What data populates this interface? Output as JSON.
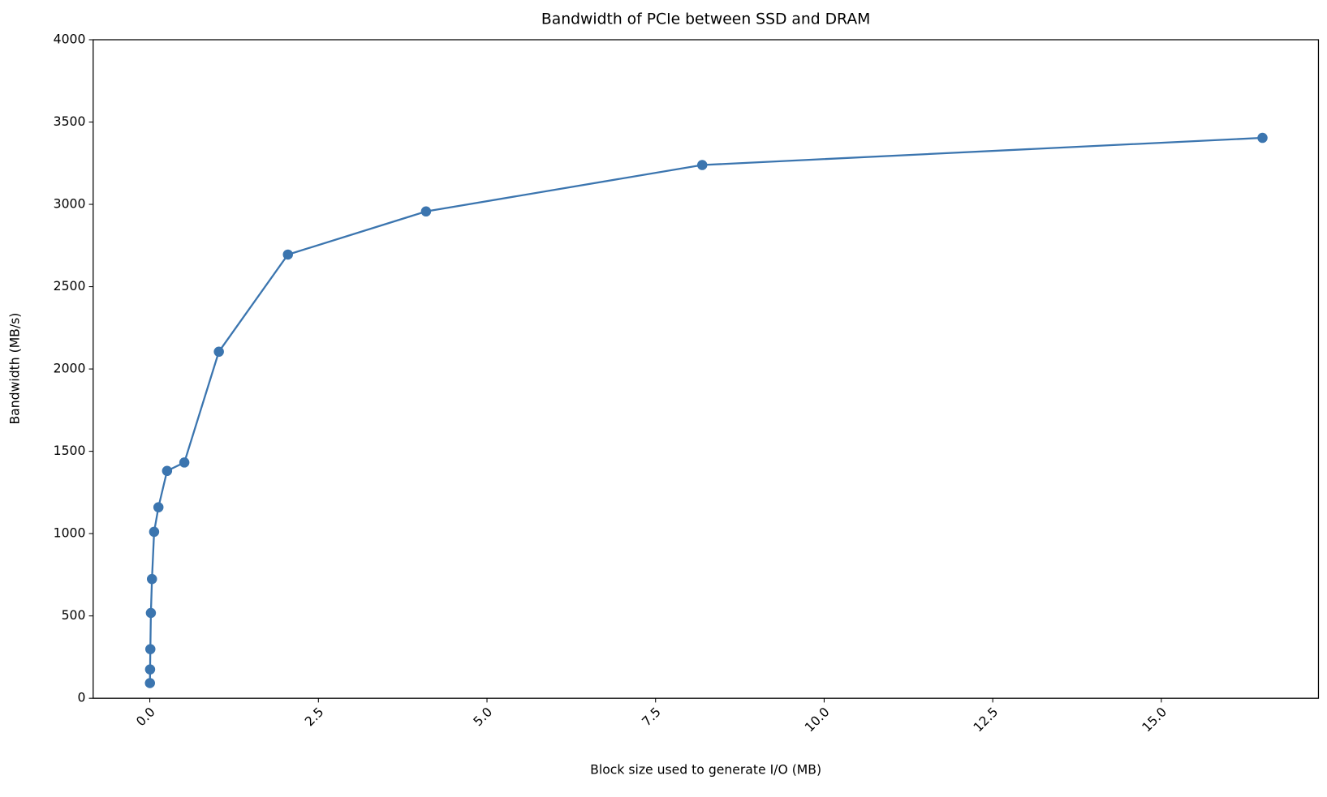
{
  "chart_data": {
    "type": "line",
    "title": "Bandwidth of PCIe between SSD and DRAM",
    "xlabel": "Block size used to generate I/O (MB)",
    "ylabel": "Bandwidth (MB/s)",
    "x": [
      0.002,
      0.004,
      0.008,
      0.016,
      0.032,
      0.064,
      0.128,
      0.256,
      0.512,
      1.024,
      2.048,
      4.096,
      8.192,
      16.5
    ],
    "series": [
      {
        "color": "#3b75af",
        "values": [
          92,
          175,
          298,
          518,
          724,
          1011,
          1160,
          1381,
          1432,
          2105,
          2695,
          2957,
          3239,
          3404
        ]
      }
    ],
    "xlim": [
      -0.84,
      17.33
    ],
    "ylim": [
      0,
      4000
    ],
    "xticks": [
      {
        "value": 0,
        "label": "0.0"
      },
      2.5,
      {
        "value": 5,
        "label": "5.0"
      },
      7.5,
      {
        "value": 10,
        "label": "10.0"
      },
      12.5,
      {
        "value": 15,
        "label": "15.0"
      }
    ],
    "yticks": [
      0,
      500,
      1000,
      1500,
      2000,
      2500,
      3000,
      3500,
      4000
    ],
    "grid": false
  }
}
